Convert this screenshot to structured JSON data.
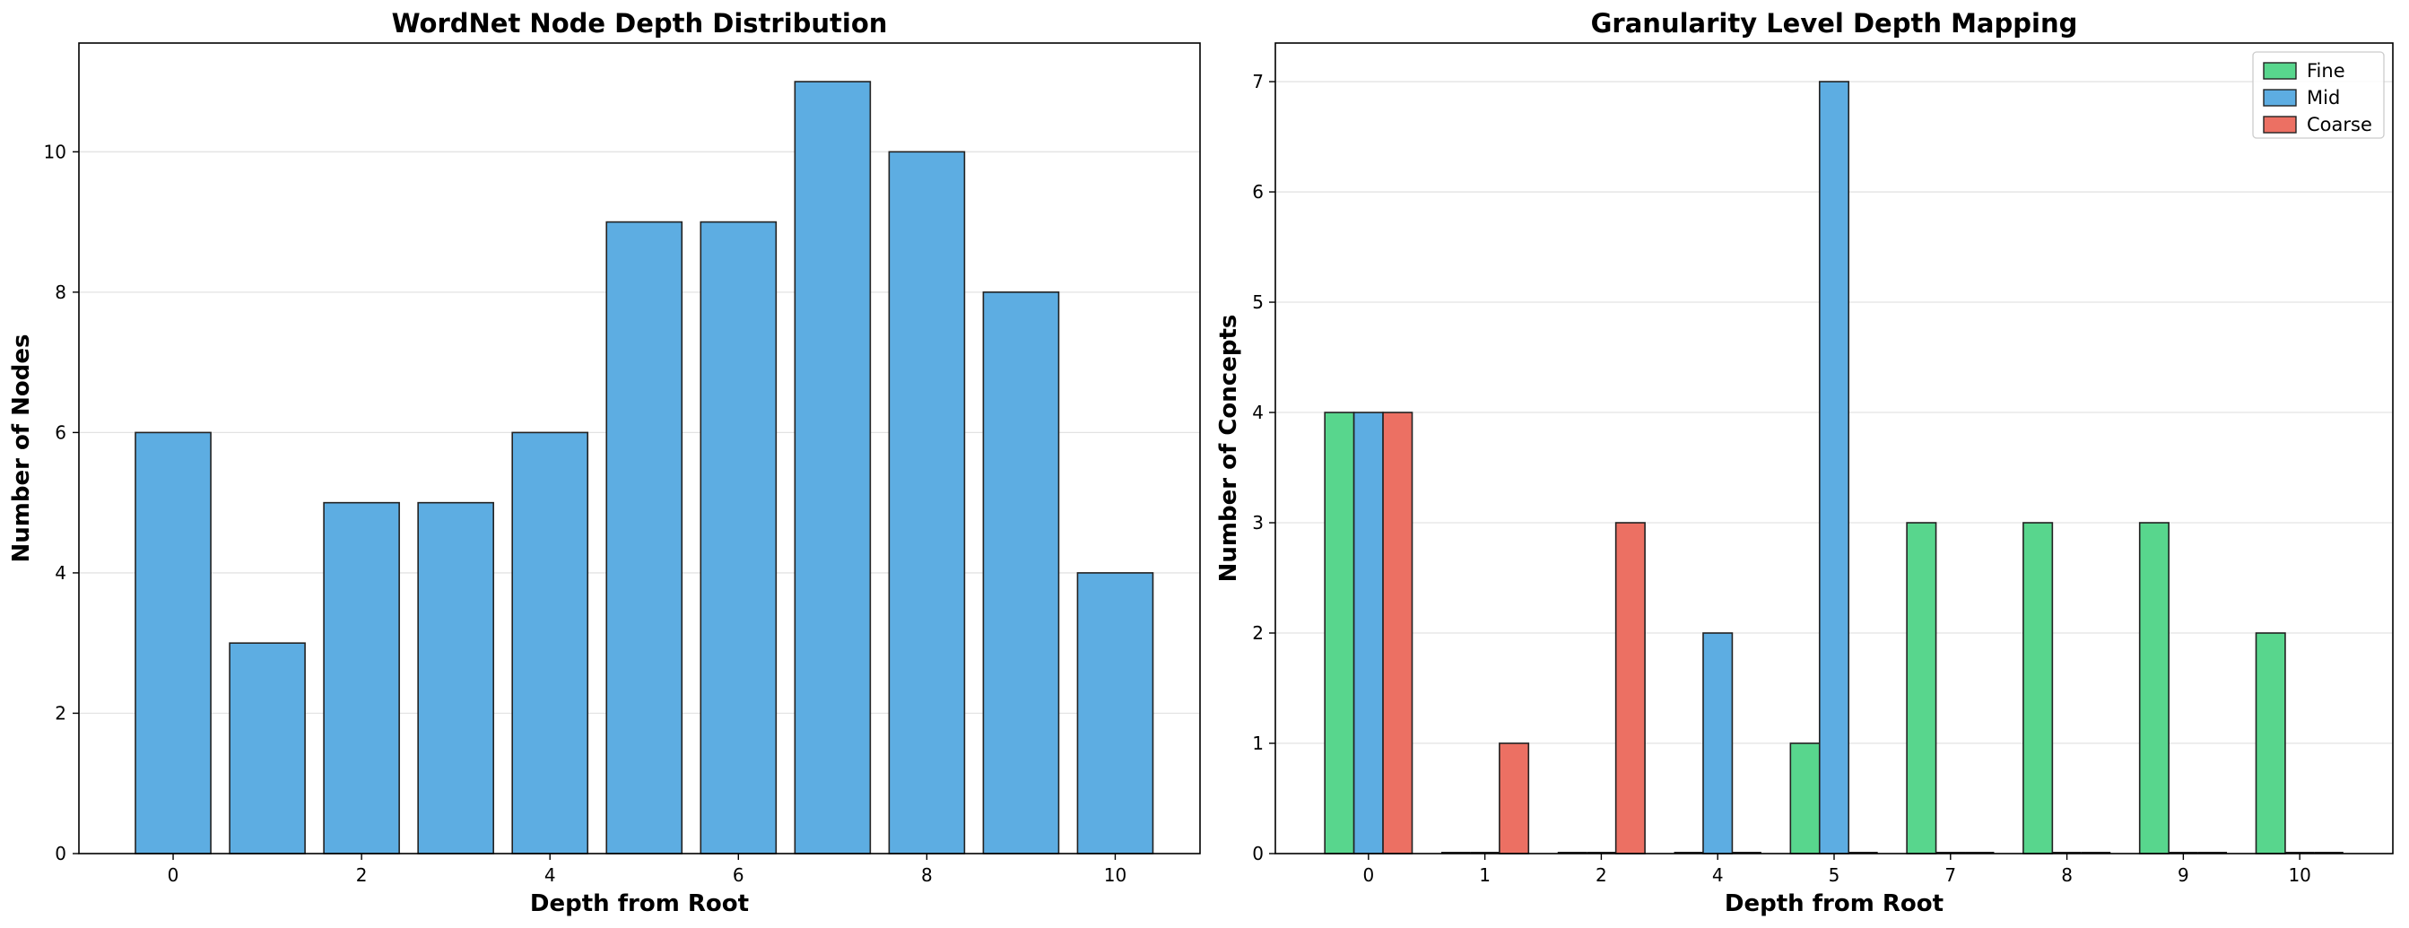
{
  "chart_data": [
    {
      "type": "bar",
      "title": "WordNet Node Depth Distribution",
      "xlabel": "Depth from Root",
      "ylabel": "Number of Nodes",
      "x": [
        0,
        1,
        2,
        3,
        4,
        5,
        6,
        7,
        8,
        9,
        10
      ],
      "values": [
        6,
        3,
        5,
        5,
        6,
        9,
        9,
        11,
        10,
        8,
        4
      ],
      "xticks": [
        0,
        2,
        4,
        6,
        8,
        10
      ],
      "yticks": [
        0,
        2,
        4,
        6,
        8,
        10
      ],
      "xlim": [
        -1.0,
        10.9
      ],
      "ylim": [
        0,
        11.55
      ],
      "color": "#5dade2",
      "grid": "y"
    },
    {
      "type": "bar",
      "title": "Granularity Level Depth Mapping",
      "xlabel": "Depth from Root",
      "ylabel": "Number of Concepts",
      "categories": [
        "0",
        "1",
        "2",
        "4",
        "5",
        "7",
        "8",
        "9",
        "10"
      ],
      "series": [
        {
          "name": "Fine",
          "color": "#58d68d",
          "values": [
            4,
            0,
            0,
            0,
            1,
            3,
            3,
            3,
            2
          ]
        },
        {
          "name": "Mid",
          "color": "#5dade2",
          "values": [
            4,
            0,
            0,
            2,
            7,
            0,
            0,
            0,
            0
          ]
        },
        {
          "name": "Coarse",
          "color": "#ec7063",
          "values": [
            4,
            1,
            3,
            0,
            0,
            0,
            0,
            0,
            0
          ]
        }
      ],
      "yticks": [
        0,
        1,
        2,
        3,
        4,
        5,
        6,
        7
      ],
      "ylim": [
        0,
        7.35
      ],
      "legend": "top-right",
      "grid": "y"
    }
  ]
}
